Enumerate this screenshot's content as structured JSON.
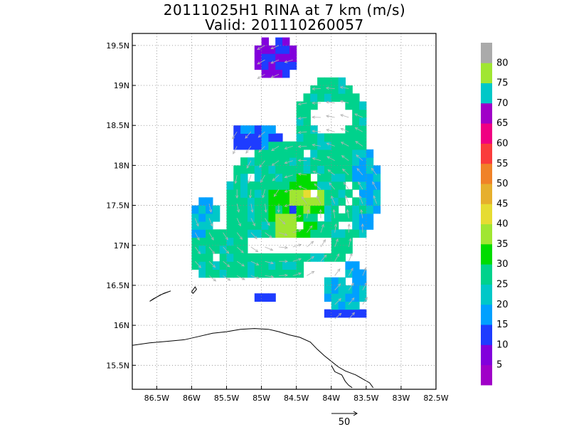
{
  "title": "20111025H1 RINA at 7 km (m/s)",
  "subtitle": "Valid: 201110260057",
  "chart_data": {
    "type": "heatmap",
    "title": "20111025H1 RINA at 7 km (m/s)",
    "subtitle": "Valid: 201110260057",
    "x_ticks": [
      "86.5W",
      "86W",
      "85.5W",
      "85W",
      "84.5W",
      "84W",
      "83.5W",
      "83W",
      "82.5W"
    ],
    "x_tick_values": [
      -86.5,
      -86.0,
      -85.5,
      -85.0,
      -84.5,
      -84.0,
      -83.5,
      -83.0,
      -82.5
    ],
    "y_ticks": [
      "15.5N",
      "16N",
      "16.5N",
      "17N",
      "17.5N",
      "18N",
      "18.5N",
      "19N",
      "19.5N"
    ],
    "y_tick_values": [
      15.5,
      16.0,
      16.5,
      17.0,
      17.5,
      18.0,
      18.5,
      19.0,
      19.5
    ],
    "xlim": [
      -86.85,
      -82.5
    ],
    "ylim": [
      15.2,
      19.65
    ],
    "grid": true,
    "colorbar": {
      "labels": [
        "5",
        "10",
        "15",
        "20",
        "25",
        "30",
        "35",
        "40",
        "45",
        "50",
        "55",
        "60",
        "65",
        "70",
        "75",
        "80"
      ],
      "colors": [
        "#a000c8",
        "#8200dc",
        "#1e3cff",
        "#00a0ff",
        "#00c8c8",
        "#00d28c",
        "#00dc00",
        "#a0e632",
        "#e6dc32",
        "#e6af2d",
        "#f08228",
        "#fa3c3c",
        "#f00082",
        "#a000c8",
        "#00c8c8",
        "#a0e632",
        "#aaaaaa"
      ]
    },
    "vector_reference": {
      "label": "50",
      "value": 50
    },
    "storm_center": {
      "lon": -84.55,
      "lat": 17.45
    },
    "wind_regions": [
      {
        "level": 26,
        "lon": -84.55,
        "lat": 17.45,
        "rlon": 1.0,
        "rlat": 0.85
      },
      {
        "level": 26,
        "lon": -85.2,
        "lat": 16.9,
        "rlon": 0.9,
        "rlat": 0.35
      },
      {
        "level": 26,
        "lon": -84.0,
        "lat": 18.5,
        "rlon": 0.5,
        "rlat": 0.6
      },
      {
        "level": 20,
        "lon": -85.8,
        "lat": 17.1,
        "rlon": 0.25,
        "rlat": 0.5
      },
      {
        "level": 20,
        "lon": -83.8,
        "lat": 16.5,
        "rlon": 0.35,
        "rlat": 0.35
      },
      {
        "level": 20,
        "lon": -83.6,
        "lat": 17.7,
        "rlon": 0.3,
        "rlat": 0.6
      },
      {
        "level": 31,
        "lon": -84.5,
        "lat": 17.5,
        "rlon": 0.42,
        "rlat": 0.38
      },
      {
        "level": 38,
        "lon": -84.35,
        "lat": 17.6,
        "rlon": 0.25,
        "rlat": 0.15
      },
      {
        "level": 38,
        "lon": -84.65,
        "lat": 17.25,
        "rlon": 0.15,
        "rlat": 0.15
      },
      {
        "level": 43,
        "lon": -84.3,
        "lat": 17.62,
        "rlon": 0.08,
        "rlat": 0.08
      },
      {
        "level": 14,
        "lon": -85.1,
        "lat": 18.35,
        "rlon": 0.35,
        "rlat": 0.2
      },
      {
        "level": 9,
        "lon": -84.8,
        "lat": 19.35,
        "rlon": 0.3,
        "rlat": 0.25
      },
      {
        "level": 12,
        "lon": -83.8,
        "lat": 16.15,
        "rlon": 0.3,
        "rlat": 0.1
      },
      {
        "level": 12,
        "lon": -85.0,
        "lat": 16.35,
        "rlon": 0.15,
        "rlat": 0.08
      }
    ],
    "holes": [
      {
        "lon": -84.6,
        "lat": 17.0,
        "rlon": 0.8,
        "rlat": 0.07
      },
      {
        "lon": -84.0,
        "lat": 18.6,
        "rlon": 0.3,
        "rlat": 0.25
      },
      {
        "lon": -85.4,
        "lat": 17.0,
        "rlon": 0.2,
        "rlat": 0.05
      },
      {
        "lon": -84.1,
        "lat": 16.7,
        "rlon": 0.3,
        "rlat": 0.15
      }
    ],
    "coastline_note": "Honduras coast and Bay Islands"
  }
}
